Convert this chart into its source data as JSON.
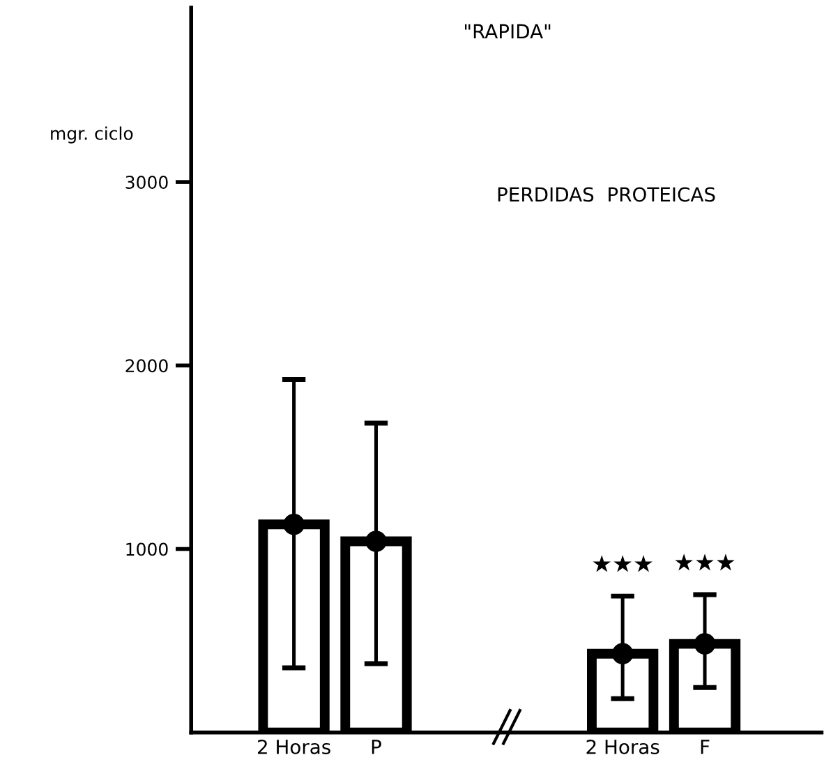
{
  "chart_data": {
    "type": "bar",
    "title": "\"RAPIDA\"",
    "subtitle": "PERDIDAS  PROTEICAS",
    "ylabel": "mgr. ciclo",
    "categories": [
      "2 Horas",
      "P",
      null,
      null,
      "2 Horas",
      "F"
    ],
    "series": [
      {
        "color": "#ffffff",
        "values": [
          1134,
          1042,
          null,
          null,
          429,
          483
        ],
        "errors": [
          [
            352,
            1923
          ],
          [
            375,
            1686
          ],
          null,
          null,
          [
            184,
            743
          ],
          [
            245,
            751
          ]
        ]
      },
      {
        "type": "scatter",
        "color": "#000000",
        "marker": "circle",
        "values": [
          1134,
          1042,
          null,
          null,
          429,
          483
        ]
      }
    ],
    "ylim": [
      0,
      3950
    ],
    "yticks": [
      1000,
      2000,
      3000
    ],
    "grid": false,
    "legend": false,
    "annotations": [
      "★★★",
      "★★★"
    ]
  }
}
